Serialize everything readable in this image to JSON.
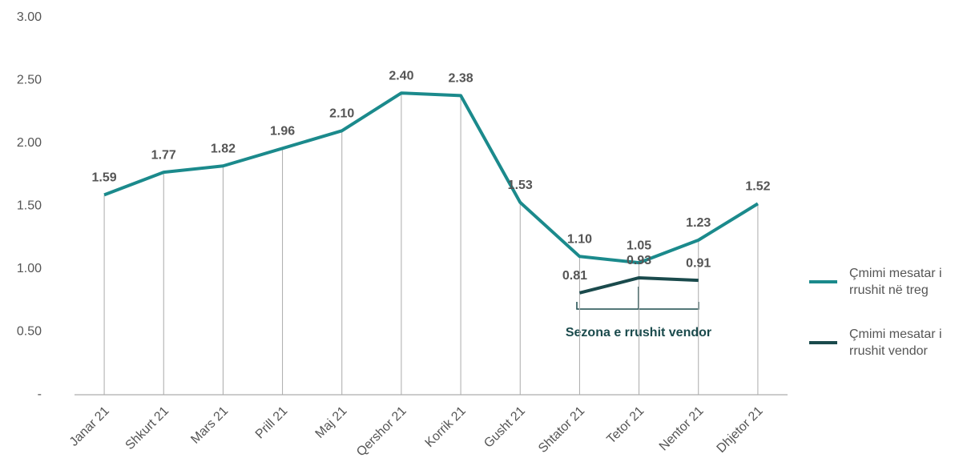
{
  "chart_data": {
    "type": "line",
    "categories": [
      "Janar 21",
      "Shkurt 21",
      "Mars 21",
      "Prill 21",
      "Maj 21",
      "Qershor 21",
      "Korrik 21",
      "Gusht 21",
      "Shtator 21",
      "Tetor 21",
      "Nentor 21",
      "Dhjetor 21"
    ],
    "series": [
      {
        "name": "Çmimi mesatar i rrushit në treg",
        "color": "#1b8a8c",
        "values": [
          1.59,
          1.77,
          1.82,
          1.96,
          2.1,
          2.4,
          2.38,
          1.53,
          1.1,
          1.05,
          1.23,
          1.52
        ],
        "value_labels": [
          "1.59",
          "1.77",
          "1.82",
          "1.96",
          "2.10",
          "2.40",
          "2.38",
          "1.53",
          "1.10",
          "1.05",
          "1.23",
          "1.52"
        ]
      },
      {
        "name": "Çmimi mesatar i rrushit vendor",
        "color": "#1a4a4c",
        "values": [
          null,
          null,
          null,
          null,
          null,
          null,
          null,
          null,
          0.81,
          0.93,
          0.91,
          null
        ],
        "value_labels": [
          null,
          null,
          null,
          null,
          null,
          null,
          null,
          null,
          "0.81",
          "0.93",
          "0.91",
          null
        ]
      }
    ],
    "ylim": [
      0,
      3
    ],
    "yticks": [
      {
        "value": 0,
        "label": "-"
      },
      {
        "value": 0.5,
        "label": "0.50"
      },
      {
        "value": 1,
        "label": "1.00"
      },
      {
        "value": 1.5,
        "label": "1.50"
      },
      {
        "value": 2,
        "label": "2.00"
      },
      {
        "value": 2.5,
        "label": "2.50"
      },
      {
        "value": 3,
        "label": "3.00"
      }
    ],
    "annotation": "Sezona e rrushit vendor",
    "legend": "right"
  }
}
